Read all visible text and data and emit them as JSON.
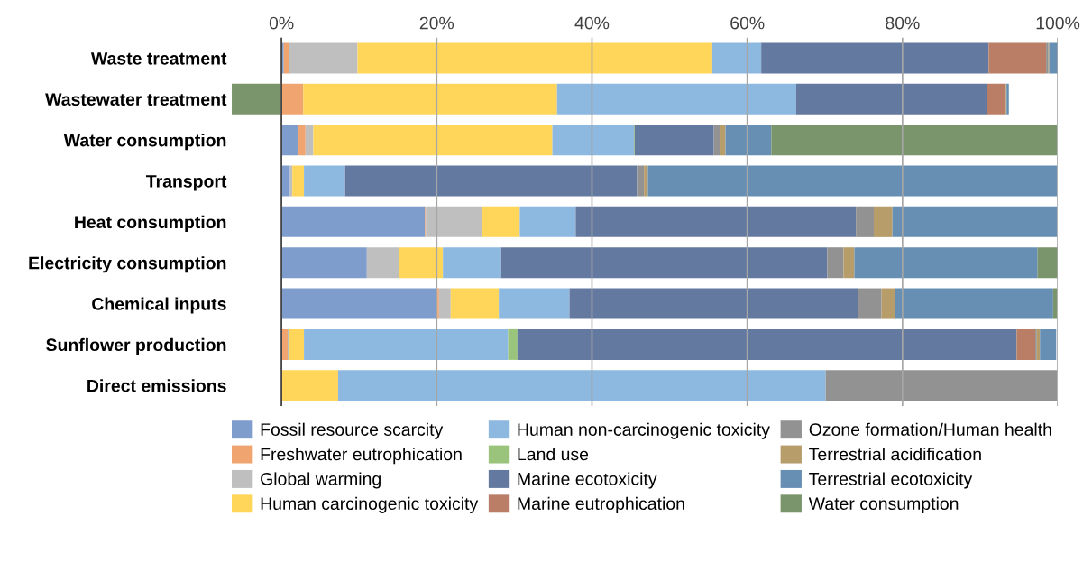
{
  "chart_data": {
    "type": "bar",
    "orientation": "horizontal",
    "stacked": true,
    "categories": [
      "Waste treatment",
      "Wastewater treatment",
      "Water consumption",
      "Transport",
      "Heat consumption",
      "Electricity consumption",
      "Chemical inputs",
      "Sunflower production",
      "Direct emissions"
    ],
    "xlim": [
      -6.4,
      100
    ],
    "xticks": [
      {
        "value": 0,
        "label": "0%"
      },
      {
        "value": 20,
        "label": "20%"
      },
      {
        "value": 40,
        "label": "40%"
      },
      {
        "value": 60,
        "label": "60%"
      },
      {
        "value": 80,
        "label": "80%"
      },
      {
        "value": 100,
        "label": "100%"
      }
    ],
    "grid": "x",
    "legend": "bottom",
    "series": [
      {
        "name": "Fossil resource scarcity",
        "color": "#7f9dcc",
        "values": [
          0.3,
          0,
          2.2,
          1.1,
          18.5,
          11.0,
          20.1,
          null,
          0
        ]
      },
      {
        "name": "Freshwater eutrophication",
        "color": "#f0a470",
        "values": [
          0.7,
          2.8,
          0.9,
          0,
          0.1,
          0,
          0.2,
          0.8,
          0
        ]
      },
      {
        "name": "Global warming",
        "color": "#bfbfbf",
        "values": [
          8.8,
          0,
          1.0,
          0.3,
          7.2,
          4.1,
          1.5,
          0.2,
          0
        ]
      },
      {
        "name": "Human carcinogenic toxicity",
        "color": "#ffd55a",
        "values": [
          45.7,
          32.7,
          30.8,
          1.5,
          4.9,
          5.7,
          6.2,
          1.9,
          7.3
        ]
      },
      {
        "name": "Human non-carcinogenic toxicity",
        "color": "#8db8e0",
        "values": [
          6.3,
          30.8,
          10.5,
          5.3,
          7.2,
          7.5,
          9.1,
          26.3,
          62.8
        ]
      },
      {
        "name": "Land use",
        "color": "#9ac47c",
        "values": [
          0,
          0,
          0.1,
          0,
          0,
          0,
          null,
          1.2,
          0
        ]
      },
      {
        "name": "Marine ecotoxicity",
        "color": "#64799f",
        "values": [
          29.3,
          24.6,
          10.2,
          37.6,
          36.1,
          42.0,
          37.2,
          64.3,
          0
        ]
      },
      {
        "name": "Marine eutrophication",
        "color": "#b97e65",
        "values": [
          7.4,
          2.3,
          0,
          0,
          0,
          0,
          0,
          2.4,
          0
        ]
      },
      {
        "name": "Ozone formation/Human health",
        "color": "#929292",
        "values": [
          0.3,
          0.1,
          0.8,
          0.9,
          2.3,
          2.1,
          3.0,
          0.2,
          29.8
        ]
      },
      {
        "name": "Terrestrial acidification",
        "color": "#b79d69",
        "values": [
          0.1,
          0.1,
          0.7,
          0.5,
          2.4,
          1.4,
          1.7,
          0.4,
          0
        ]
      },
      {
        "name": "Terrestrial ecotoxicity",
        "color": "#678fb4",
        "values": [
          1.1,
          0.3,
          5.9,
          52.7,
          21.2,
          23.6,
          20.4,
          2.1,
          null
        ]
      },
      {
        "name": "Water consumption",
        "color": "#7a946b",
        "values": [
          0,
          -6.4,
          36.8,
          0,
          0,
          2.7,
          0.5,
          0,
          0
        ]
      }
    ]
  }
}
